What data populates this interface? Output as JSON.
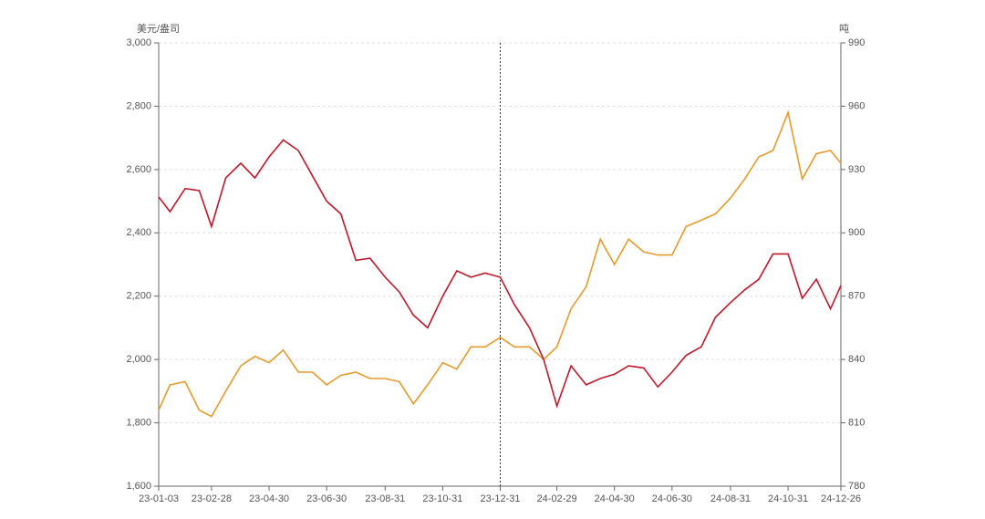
{
  "chart_data": {
    "type": "line",
    "y_axis_label": "美元/盎司",
    "y2_axis_label": "吨",
    "x": [
      "23-01-03",
      "23-01-15",
      "23-01-31",
      "23-02-15",
      "23-02-28",
      "23-03-15",
      "23-03-31",
      "23-04-15",
      "23-04-30",
      "23-05-15",
      "23-05-31",
      "23-06-15",
      "23-06-30",
      "23-07-15",
      "23-07-31",
      "23-08-15",
      "23-08-31",
      "23-09-15",
      "23-09-30",
      "23-10-15",
      "23-10-31",
      "23-11-15",
      "23-11-30",
      "23-12-15",
      "23-12-31",
      "24-01-15",
      "24-01-31",
      "24-02-15",
      "24-02-29",
      "24-03-15",
      "24-03-31",
      "24-04-15",
      "24-04-30",
      "24-05-15",
      "24-05-31",
      "24-06-15",
      "24-06-30",
      "24-07-15",
      "24-07-31",
      "24-08-15",
      "24-08-31",
      "24-09-15",
      "24-09-30",
      "24-10-15",
      "24-10-31",
      "24-11-15",
      "24-11-30",
      "24-12-15",
      "24-12-26"
    ],
    "series": [
      {
        "color": "#e59a2c",
        "axis": "y",
        "values": [
          1840,
          1920,
          1930,
          1840,
          1820,
          1900,
          1980,
          2010,
          1990,
          2030,
          1960,
          1960,
          1920,
          1950,
          1960,
          1940,
          1940,
          1930,
          1860,
          1920,
          1990,
          1970,
          2040,
          2040,
          2070,
          2040,
          2040,
          2000,
          2040,
          2160,
          2230,
          2380,
          2300,
          2380,
          2340,
          2330,
          2330,
          2420,
          2440,
          2460,
          2510,
          2570,
          2640,
          2660,
          2780,
          2570,
          2650,
          2660,
          2620
        ]
      },
      {
        "color": "#c0182a",
        "axis": "y2",
        "values": [
          917,
          910,
          921,
          920,
          903,
          926,
          933,
          926,
          936,
          944,
          939,
          927,
          915,
          909,
          887,
          888,
          879,
          872,
          861,
          855,
          870,
          882,
          879,
          881,
          879,
          866,
          855,
          840,
          818,
          837,
          828,
          831,
          833,
          837,
          836,
          827,
          834,
          842,
          846,
          860,
          867,
          873,
          878,
          890,
          890,
          869,
          878,
          864,
          875
        ]
      }
    ],
    "xlim": [
      "23-01-03",
      "24-12-26"
    ],
    "xticks": [
      "23-01-03",
      "23-02-28",
      "23-04-30",
      "23-06-30",
      "23-08-31",
      "23-10-31",
      "23-12-31",
      "24-02-29",
      "24-04-30",
      "24-06-30",
      "24-08-31",
      "24-10-31",
      "24-12-26"
    ],
    "ylim": [
      1600,
      3000
    ],
    "yticks": [
      {
        "value": 1600,
        "label": "1,600"
      },
      {
        "value": 1800,
        "label": "1,800"
      },
      {
        "value": 2000,
        "label": "2,000"
      },
      {
        "value": 2200,
        "label": "2,200"
      },
      {
        "value": 2400,
        "label": "2,400"
      },
      {
        "value": 2600,
        "label": "2,600"
      },
      {
        "value": 2800,
        "label": "2,800"
      },
      {
        "value": 3000,
        "label": "3,000"
      }
    ],
    "y2lim": [
      780,
      990
    ],
    "y2ticks": [
      780,
      810,
      840,
      870,
      900,
      930,
      960,
      990
    ],
    "vline": "23-12-31",
    "grid": true
  }
}
